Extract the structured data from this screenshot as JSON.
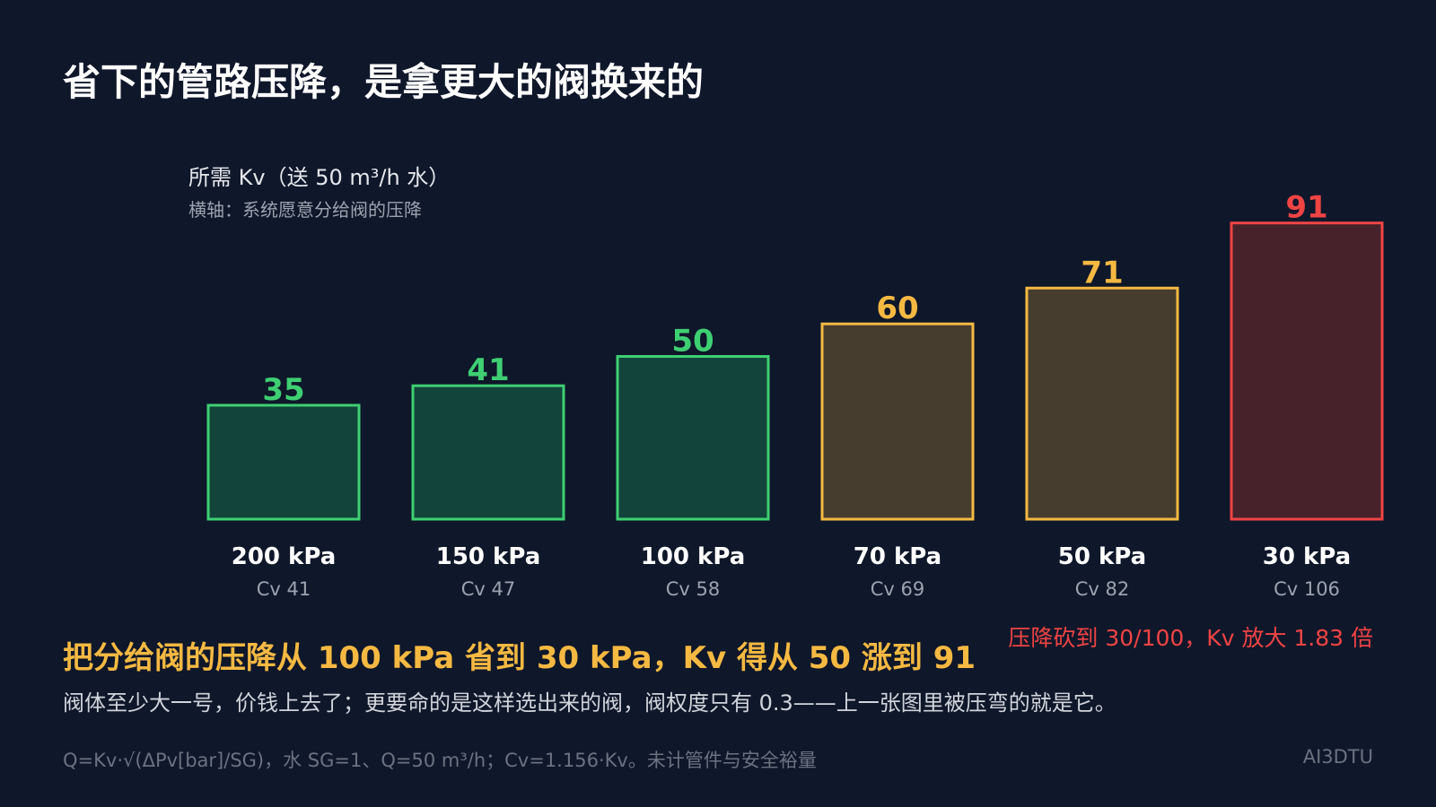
{
  "title": "省下的管路压降，是拿更大的阀换来的",
  "chart_data": {
    "type": "bar",
    "ylabel": "所需 Kv（送 50 m³/h 水）",
    "xlabel_note": "横轴：系统愿意分给阀的压降",
    "categories": [
      "200 kPa",
      "150 kPa",
      "100 kPa",
      "70 kPa",
      "50 kPa",
      "30 kPa"
    ],
    "sublabels": [
      "Cv 41",
      "Cv 47",
      "Cv 58",
      "Cv 69",
      "Cv 82",
      "Cv 106"
    ],
    "values": [
      35,
      41,
      50,
      60,
      71,
      91
    ],
    "data_labels": [
      "35",
      "41",
      "50",
      "60",
      "71",
      "91"
    ],
    "bar_colors": [
      "green",
      "green",
      "green",
      "amber",
      "amber",
      "red"
    ],
    "colors": {
      "green": {
        "stroke": "#3ecf72",
        "fill": "#13443b",
        "label": "#3ecf72"
      },
      "amber": {
        "stroke": "#f5b942",
        "fill": "#463d2f",
        "label": "#f5b942"
      },
      "red": {
        "stroke": "#ef4444",
        "fill": "#47222b",
        "label": "#ef4444"
      }
    },
    "grid": false,
    "legend": "none"
  },
  "annotation": "压降砍到 30/100，Kv 放大 1.83 倍",
  "headline": "把分给阀的压降从 100 kPa 省到 30 kPa，Kv 得从 50 涨到 91",
  "body_text": "阀体至少大一号，价钱上去了；更要命的是这样选出来的阀，阀权度只有 0.3——上一张图里被压弯的就是它。",
  "footnote": "Q=Kv·√(ΔPv[bar]/SG)，水 SG=1、Q=50 m³/h；Cv=1.156·Kv。未计管件与安全裕量",
  "brand": "AI3DTU",
  "colors": {
    "background": "#0f172a",
    "headline": "#f5b942",
    "annotation": "#ef4444"
  }
}
